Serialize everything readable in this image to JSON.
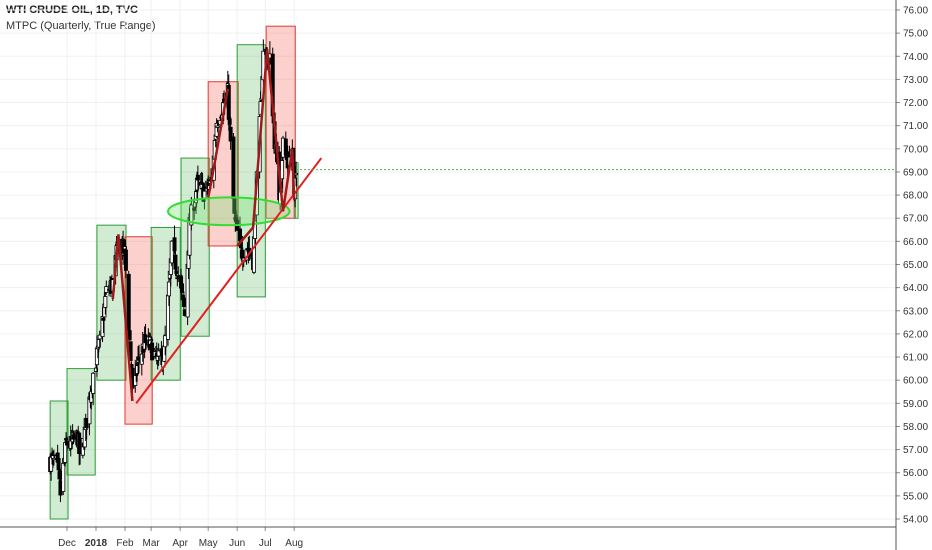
{
  "chart_data": {
    "type": "candlestick",
    "title": "WTI CRUDE OIL, 1D, TVC",
    "subtitle": "MTPC (Quarterly, True Range)",
    "ylim": [
      53.5,
      76.3
    ],
    "y_ticks": [
      "54.00",
      "55.00",
      "56.00",
      "57.00",
      "58.00",
      "59.00",
      "60.00",
      "61.00",
      "62.00",
      "63.00",
      "64.00",
      "65.00",
      "66.00",
      "67.00",
      "68.00",
      "69.00",
      "70.00",
      "71.00",
      "72.00",
      "73.00",
      "74.00",
      "75.00",
      "76.00"
    ],
    "x_ticks": [
      "Dec",
      "2018",
      "Feb",
      "Mar",
      "Apr",
      "May",
      "Jun",
      "Jul",
      "Aug"
    ],
    "boxes": [
      {
        "start": "2017-11-13",
        "end": "2017-11-30",
        "low": 54.0,
        "high": 59.1,
        "color": "green"
      },
      {
        "start": "2017-12-01",
        "end": "2017-12-29",
        "low": 55.9,
        "high": 60.5,
        "color": "green"
      },
      {
        "start": "2018-01-02",
        "end": "2018-01-31",
        "low": 60.0,
        "high": 66.7,
        "color": "green"
      },
      {
        "start": "2018-02-01",
        "end": "2018-02-28",
        "low": 58.1,
        "high": 66.2,
        "color": "red"
      },
      {
        "start": "2018-03-01",
        "end": "2018-03-30",
        "low": 60.0,
        "high": 66.6,
        "color": "green"
      },
      {
        "start": "2018-04-02",
        "end": "2018-04-30",
        "low": 61.9,
        "high": 69.6,
        "color": "green"
      },
      {
        "start": "2018-05-01",
        "end": "2018-05-31",
        "low": 65.8,
        "high": 72.9,
        "color": "red"
      },
      {
        "start": "2018-06-01",
        "end": "2018-06-29",
        "low": 63.6,
        "high": 74.5,
        "color": "green"
      },
      {
        "start": "2018-07-02",
        "end": "2018-07-31",
        "low": 67.0,
        "high": 75.3,
        "color": "red"
      },
      {
        "start": "2018-08-01",
        "end": "2018-08-03",
        "low": 67.0,
        "high": 69.4,
        "color": "green"
      }
    ],
    "zigzag": [
      {
        "date": "2018-01-19",
        "price": 63.5
      },
      {
        "date": "2018-01-25",
        "price": 66.3
      },
      {
        "date": "2018-02-09",
        "price": 59.1
      },
      {
        "date": "2018-05-01",
        "price": 67.9
      },
      {
        "date": "2018-05-04",
        "price": 68.5
      },
      {
        "date": "2018-05-22",
        "price": 72.6
      },
      {
        "date": "2018-06-01",
        "price": 65.8
      },
      {
        "date": "2018-06-18",
        "price": 66.6
      },
      {
        "date": "2018-07-03",
        "price": 74.3
      },
      {
        "date": "2018-07-20",
        "price": 67.3
      },
      {
        "date": "2018-07-30",
        "price": 70.0
      },
      {
        "date": "2018-08-01",
        "price": 67.8
      }
    ],
    "trendline": {
      "start": {
        "date": "2018-02-13",
        "price": 59.0
      },
      "end": {
        "date": "2018-08-30",
        "price": 69.6
      },
      "color": "#e01f1f"
    },
    "ellipse": {
      "center_date": "2018-05-23",
      "center_price": 67.3,
      "half_width_days": 65,
      "half_height": 0.6,
      "color": "#33dd33"
    },
    "last_price": 69.1,
    "colors": {
      "green_box": "#4caf50",
      "red_box": "#f44336",
      "candle": "#000000"
    }
  }
}
